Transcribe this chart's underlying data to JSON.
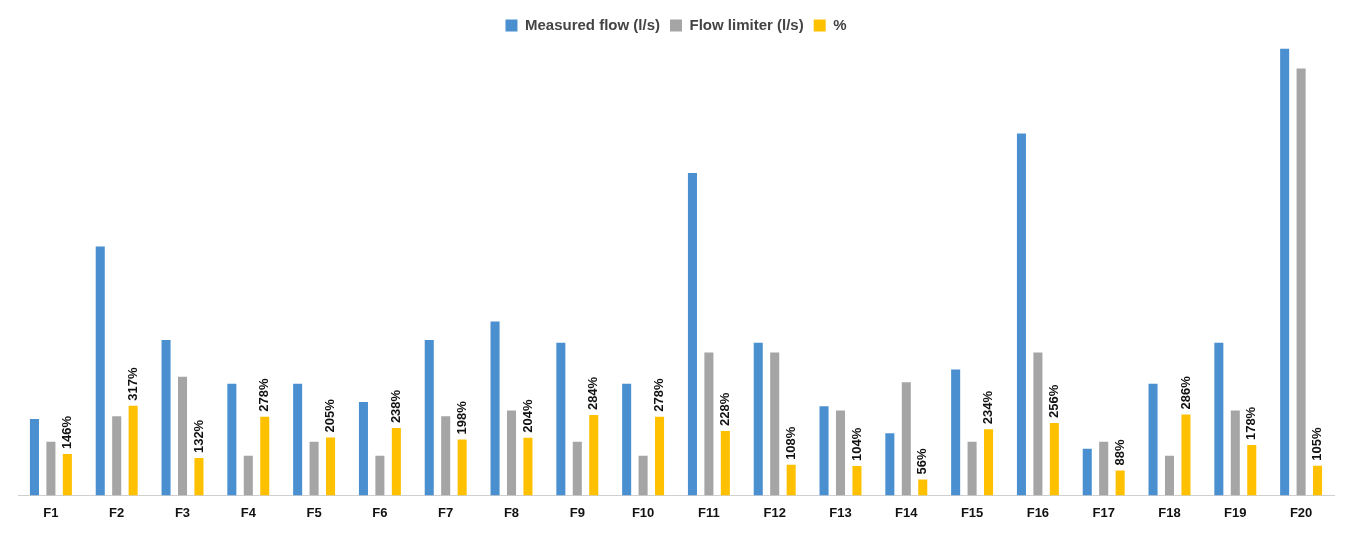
{
  "chart_data": {
    "type": "bar",
    "legend": "top",
    "grid": false,
    "categories": [
      "F1",
      "F2",
      "F3",
      "F4",
      "F5",
      "F6",
      "F7",
      "F8",
      "F9",
      "F10",
      "F11",
      "F12",
      "F13",
      "F14",
      "F15",
      "F16",
      "F17",
      "F18",
      "F19",
      "F20"
    ],
    "series": [
      {
        "name": "Measured flow (l/s)",
        "color": "#4a90d0",
        "values": [
          270,
          880,
          550,
          395,
          395,
          330,
          550,
          615,
          540,
          395,
          1140,
          540,
          315,
          220,
          445,
          1280,
          165,
          395,
          540,
          1580
        ]
      },
      {
        "name": "Flow limiter (l/s)",
        "color": "#a5a5a5",
        "values": [
          190,
          280,
          420,
          140,
          190,
          140,
          280,
          300,
          190,
          140,
          505,
          505,
          300,
          400,
          190,
          505,
          190,
          140,
          300,
          1510
        ]
      },
      {
        "name": "%",
        "color": "#ffc000",
        "values": [
          146,
          317,
          132,
          278,
          205,
          238,
          198,
          204,
          284,
          278,
          228,
          108,
          104,
          56,
          234,
          256,
          88,
          286,
          178,
          105
        ],
        "value_labels": [
          "146%",
          "317%",
          "132%",
          "278%",
          "205%",
          "238%",
          "198%",
          "204%",
          "284%",
          "278%",
          "228%",
          "108%",
          "104%",
          "56%",
          "234%",
          "256%",
          "88%",
          "286%",
          "178%",
          "105%"
        ]
      }
    ]
  }
}
